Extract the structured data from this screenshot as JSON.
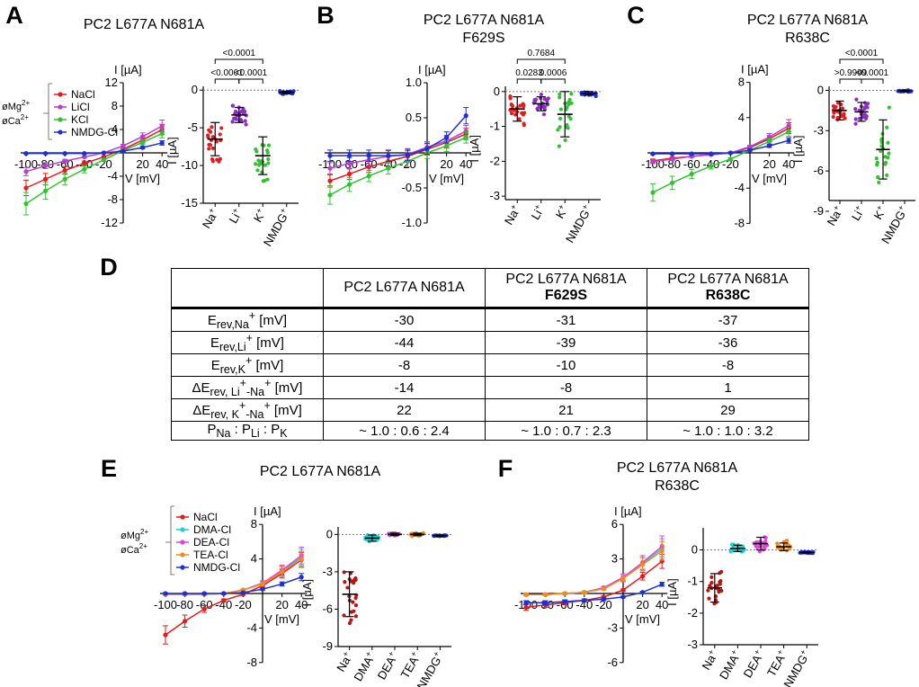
{
  "panels": {
    "A": {
      "letter": "A",
      "title": [
        "PC2 L677A N681A"
      ]
    },
    "B": {
      "letter": "B",
      "title": [
        "PC2 L677A N681A",
        "F629S"
      ]
    },
    "C": {
      "letter": "C",
      "title": [
        "PC2 L677A N681A",
        "R638C"
      ]
    },
    "D": {
      "letter": "D"
    },
    "E": {
      "letter": "E",
      "title": [
        "PC2 L677A N681A"
      ]
    },
    "F": {
      "letter": "F",
      "title": [
        "PC2 L677A N681A",
        "R638C"
      ]
    }
  },
  "legend_top": {
    "cond_mg": "øMg",
    "cond_mg_sup": "2+",
    "cond_ca": "øCa",
    "cond_ca_sup": "2+",
    "entries": [
      "NaCl",
      "LiCl",
      "KCl",
      "NMDG-Cl"
    ],
    "colors": [
      "#e41a1c",
      "#b43fd0",
      "#2fc42f",
      "#1f2fd6"
    ]
  },
  "legend_bottom": {
    "cond_mg": "øMg",
    "cond_mg_sup": "2+",
    "cond_ca": "øCa",
    "cond_ca_sup": "2+",
    "entries": [
      "NaCl",
      "DMA-Cl",
      "DEA-Cl",
      "TEA-Cl",
      "NMDG-Cl"
    ],
    "colors": [
      "#e41a1c",
      "#19d3d3",
      "#e045d8",
      "#f08c1a",
      "#1f2fd6"
    ]
  },
  "chart_data": [
    {
      "id": "A-iv",
      "type": "line",
      "ylabel": "I [µA]",
      "xlabel": "V [mV]",
      "x": [
        -100,
        -80,
        -60,
        -40,
        -20,
        0,
        20,
        40
      ],
      "xticks": [
        -100,
        -80,
        -60,
        -40,
        -20,
        20,
        40
      ],
      "ylim": [
        -12,
        12
      ],
      "yticks": [
        -12,
        -8,
        -4,
        4,
        8,
        12
      ],
      "series": [
        {
          "name": "NaCl",
          "color": "#e41a1c",
          "values": [
            -6.0,
            -4.5,
            -3.0,
            -1.8,
            -0.7,
            0.6,
            2.2,
            4.0
          ]
        },
        {
          "name": "LiCl",
          "color": "#b43fd0",
          "values": [
            -3.2,
            -2.2,
            -1.4,
            -0.7,
            0.0,
            1.2,
            2.8,
            4.6
          ]
        },
        {
          "name": "KCl",
          "color": "#2fc42f",
          "values": [
            -8.7,
            -6.5,
            -4.5,
            -2.8,
            -1.2,
            0.4,
            1.8,
            3.3
          ]
        },
        {
          "name": "NMDG-Cl",
          "color": "#1f2fd6",
          "values": [
            -0.1,
            -0.1,
            -0.1,
            -0.1,
            0.0,
            0.3,
            0.9,
            1.7
          ]
        }
      ]
    },
    {
      "id": "A-scatter",
      "type": "scatter",
      "ylabel": "I [µA]",
      "categories": [
        "Na",
        "Li",
        "K",
        "NMDG"
      ],
      "category_sups": [
        "+",
        "+",
        "+",
        "+"
      ],
      "ylim": [
        -15,
        0.5
      ],
      "yticks": [
        0,
        -5,
        -10,
        -15
      ],
      "colors": [
        "#e41a1c",
        "#8b2fbf",
        "#2fc42f",
        "#1f2fd6"
      ],
      "means": [
        -6.5,
        -3.3,
        -8.7,
        -0.3
      ],
      "sds": [
        2.2,
        1.0,
        2.5,
        0.15
      ],
      "brackets": [
        {
          "from": 0,
          "to": 2,
          "label": "<0.0001",
          "level": 2
        },
        {
          "from": 0,
          "to": 1,
          "label": "<0.0001",
          "level": 1
        },
        {
          "from": 1,
          "to": 2,
          "label": "<0.0001",
          "level": 1
        }
      ]
    },
    {
      "id": "B-iv",
      "type": "line",
      "ylabel": "I [µA]",
      "xlabel": "V [mV]",
      "x": [
        -100,
        -80,
        -60,
        -40,
        -20,
        0,
        20,
        40
      ],
      "xticks": [
        -100,
        -80,
        -60,
        -40,
        -20,
        20,
        40
      ],
      "ylim": [
        -1.0,
        1.0
      ],
      "yticks": [
        -1.0,
        -0.5,
        0.5,
        1.0
      ],
      "series": [
        {
          "name": "NaCl",
          "color": "#e41a1c",
          "values": [
            -0.4,
            -0.3,
            -0.2,
            -0.12,
            -0.05,
            0.05,
            0.15,
            0.27
          ]
        },
        {
          "name": "LiCl",
          "color": "#b43fd0",
          "values": [
            -0.22,
            -0.15,
            -0.1,
            -0.05,
            -0.02,
            0.08,
            0.17,
            0.31
          ]
        },
        {
          "name": "KCl",
          "color": "#2fc42f",
          "values": [
            -0.6,
            -0.45,
            -0.33,
            -0.22,
            -0.12,
            0.0,
            0.1,
            0.22
          ]
        },
        {
          "name": "NMDG-Cl",
          "color": "#1f2fd6",
          "values": [
            -0.04,
            -0.04,
            -0.04,
            -0.04,
            -0.03,
            0.06,
            0.22,
            0.53
          ]
        }
      ]
    },
    {
      "id": "B-scatter",
      "type": "scatter",
      "ylabel": "I [µA]",
      "categories": [
        "Na",
        "Li",
        "K",
        "NMDG"
      ],
      "category_sups": [
        "+",
        "+",
        "+",
        "+"
      ],
      "ylim": [
        -3.1,
        0.15
      ],
      "yticks": [
        0,
        -1,
        -2,
        -3
      ],
      "colors": [
        "#e41a1c",
        "#8b2fbf",
        "#2fc42f",
        "#1f2fd6"
      ],
      "means": [
        -0.5,
        -0.35,
        -0.65,
        -0.05
      ],
      "sds": [
        0.35,
        0.2,
        0.65,
        0.05
      ],
      "brackets": [
        {
          "from": 0,
          "to": 2,
          "label": "0.7684",
          "level": 2
        },
        {
          "from": 0,
          "to": 1,
          "label": "0.0283",
          "level": 1
        },
        {
          "from": 1,
          "to": 2,
          "label": "0.0006",
          "level": 1
        }
      ]
    },
    {
      "id": "C-iv",
      "type": "line",
      "ylabel": "I [µA]",
      "xlabel": "V [mV]",
      "x": [
        -100,
        -80,
        -60,
        -40,
        -20,
        0,
        20,
        40
      ],
      "xticks": [
        -100,
        -80,
        -60,
        -40,
        -20,
        20,
        40
      ],
      "ylim": [
        -8,
        8
      ],
      "yticks": [
        -8,
        -4,
        4,
        8
      ],
      "series": [
        {
          "name": "NaCl",
          "color": "#e41a1c",
          "values": [
            -0.9,
            -0.6,
            -0.4,
            -0.2,
            0.0,
            0.6,
            1.6,
            2.8
          ]
        },
        {
          "name": "LiCl",
          "color": "#b43fd0",
          "values": [
            -1.0,
            -0.7,
            -0.4,
            -0.2,
            0.0,
            0.7,
            1.8,
            3.1
          ]
        },
        {
          "name": "KCl",
          "color": "#2fc42f",
          "values": [
            -4.5,
            -3.4,
            -2.4,
            -1.5,
            -0.7,
            0.3,
            1.3,
            2.4
          ]
        },
        {
          "name": "NMDG-Cl",
          "color": "#1f2fd6",
          "values": [
            -0.1,
            -0.1,
            -0.1,
            -0.1,
            0.0,
            0.3,
            0.8,
            1.4
          ]
        }
      ]
    },
    {
      "id": "C-scatter",
      "type": "scatter",
      "ylabel": "I [µA]",
      "categories": [
        "Na",
        "Li",
        "K",
        "NMDG"
      ],
      "category_sups": [
        "+",
        "+",
        "+",
        "+"
      ],
      "ylim": [
        -8.2,
        0.3
      ],
      "yticks": [
        0,
        -3,
        -6,
        -9
      ],
      "colors": [
        "#e41a1c",
        "#8b2fbf",
        "#2fc42f",
        "#1f2fd6"
      ],
      "means": [
        -1.5,
        -1.6,
        -4.4,
        -0.05
      ],
      "sds": [
        0.7,
        0.7,
        2.2,
        0.05
      ],
      "brackets": [
        {
          "from": 0,
          "to": 2,
          "label": "<0.0001",
          "level": 2
        },
        {
          "from": 0,
          "to": 1,
          "label": ">0.9999",
          "level": 1
        },
        {
          "from": 1,
          "to": 2,
          "label": "<0.0001",
          "level": 1
        }
      ]
    },
    {
      "id": "E-iv",
      "type": "line",
      "ylabel": "I [µA]",
      "xlabel": "V [mV]",
      "x": [
        -100,
        -80,
        -60,
        -40,
        -20,
        0,
        20,
        40
      ],
      "xticks": [
        -100,
        -80,
        -60,
        -40,
        -20,
        20,
        40
      ],
      "ylim": [
        -8,
        8
      ],
      "yticks": [
        -8,
        -4,
        4,
        8
      ],
      "series": [
        {
          "name": "NaCl",
          "color": "#e41a1c",
          "values": [
            -4.8,
            -3.2,
            -1.8,
            -0.8,
            -0.1,
            0.9,
            2.3,
            3.9
          ]
        },
        {
          "name": "DMA-Cl",
          "color": "#19d3d3",
          "values": [
            -0.1,
            -0.1,
            -0.1,
            0.0,
            0.4,
            1.2,
            2.6,
            4.2
          ]
        },
        {
          "name": "DEA-Cl",
          "color": "#e045d8",
          "values": [
            -0.1,
            -0.1,
            -0.1,
            0.0,
            0.4,
            1.2,
            2.7,
            4.4
          ]
        },
        {
          "name": "TEA-Cl",
          "color": "#f08c1a",
          "values": [
            -0.1,
            -0.1,
            -0.1,
            0.0,
            0.4,
            1.1,
            2.5,
            4.0
          ]
        },
        {
          "name": "NMDG-Cl",
          "color": "#1f2fd6",
          "values": [
            0.0,
            0.0,
            0.0,
            0.0,
            0.1,
            0.5,
            1.1,
            1.9
          ]
        }
      ]
    },
    {
      "id": "E-scatter",
      "type": "scatter",
      "ylabel": "I [µA]",
      "categories": [
        "Na",
        "DMA",
        "DEA",
        "TEA",
        "NMDG"
      ],
      "category_sups": [
        "+",
        "+",
        "+",
        "+",
        "+"
      ],
      "ylim": [
        -9,
        0.6
      ],
      "yticks": [
        0,
        -3,
        -6,
        -9
      ],
      "colors": [
        "#b81414",
        "#19d3d3",
        "#e045d8",
        "#f08c1a",
        "#1f2fd6"
      ],
      "means": [
        -4.8,
        -0.3,
        0.0,
        0.0,
        -0.1
      ],
      "sds": [
        1.8,
        0.25,
        0.1,
        0.1,
        0.05
      ],
      "brackets": []
    },
    {
      "id": "F-iv",
      "type": "line",
      "ylabel": "I [µA]",
      "xlabel": "V [mV]",
      "x": [
        -100,
        -80,
        -60,
        -40,
        -20,
        0,
        20,
        40
      ],
      "xticks": [
        -100,
        -80,
        -60,
        -40,
        -20,
        20,
        40
      ],
      "ylim": [
        -6,
        6
      ],
      "yticks": [
        -6,
        -3,
        3,
        6
      ],
      "series": [
        {
          "name": "NaCl",
          "color": "#e41a1c",
          "values": [
            -1.2,
            -1.0,
            -0.8,
            -0.6,
            -0.3,
            0.3,
            1.5,
            2.8
          ]
        },
        {
          "name": "DMA-Cl",
          "color": "#19d3d3",
          "values": [
            -0.1,
            -0.1,
            0.0,
            0.1,
            0.5,
            1.4,
            2.6,
            3.9
          ]
        },
        {
          "name": "DEA-Cl",
          "color": "#e045d8",
          "values": [
            -0.1,
            -0.1,
            0.0,
            0.1,
            0.5,
            1.4,
            2.7,
            4.1
          ]
        },
        {
          "name": "TEA-Cl",
          "color": "#f08c1a",
          "values": [
            -0.1,
            -0.1,
            0.0,
            0.1,
            0.4,
            1.3,
            2.5,
            3.7
          ]
        },
        {
          "name": "NMDG-Cl",
          "color": "#1f2fd6",
          "values": [
            -0.8,
            -0.8,
            -0.7,
            -0.6,
            -0.5,
            -0.3,
            0.1,
            0.8
          ]
        }
      ]
    },
    {
      "id": "F-scatter",
      "type": "scatter",
      "ylabel": "I [µA]",
      "categories": [
        "Na",
        "DMA",
        "DEA",
        "TEA",
        "NMDG"
      ],
      "category_sups": [
        "+",
        "+",
        "+",
        "+",
        "+"
      ],
      "ylim": [
        -3,
        0.7
      ],
      "yticks": [
        0,
        -1,
        -2,
        -3
      ],
      "colors": [
        "#b81414",
        "#19d3d3",
        "#e045d8",
        "#f08c1a",
        "#1f2fd6"
      ],
      "means": [
        -1.2,
        0.05,
        0.2,
        0.1,
        -0.08
      ],
      "sds": [
        0.45,
        0.1,
        0.2,
        0.12,
        0.02
      ],
      "brackets": []
    },
    {
      "id": "D-table",
      "type": "table",
      "header": [
        "",
        "PC2 L677A N681A",
        "PC2 L677A N681A",
        "PC2 L677A N681A"
      ],
      "header_sub": [
        "",
        "",
        "F629S",
        "R638C"
      ],
      "rows": [
        {
          "label": "E_rev,Na+ [mV]",
          "values": [
            "-30",
            "-31",
            "-37"
          ]
        },
        {
          "label": "E_rev,Li+ [mV]",
          "values": [
            "-44",
            "-39",
            "-36"
          ]
        },
        {
          "label": "E_rev,K+ [mV]",
          "values": [
            "-8",
            "-10",
            "-8"
          ]
        },
        {
          "label": "ΔE_rev, Li+-Na+ [mV]",
          "values": [
            "-14",
            "-8",
            "1"
          ]
        },
        {
          "label": "ΔE_rev, K+-Na+ [mV]",
          "values": [
            "22",
            "21",
            "29"
          ]
        },
        {
          "label": "P_Na : P_Li : P_K",
          "values": [
            "~ 1.0 : 0.6 : 2.4",
            "~ 1.0 : 0.7 : 2.3",
            "~ 1.0 : 1.0 : 3.2"
          ]
        }
      ]
    }
  ],
  "table_labels": {
    "r0": {
      "main": "E",
      "sub": "rev,Na",
      "sup": "+",
      "unit": " [mV]"
    },
    "r1": {
      "main": "E",
      "sub": "rev,Li",
      "sup": "+",
      "unit": " [mV]"
    },
    "r2": {
      "main": "E",
      "sub": "rev,K",
      "sup": "+",
      "unit": " [mV]"
    },
    "r3": {
      "main": "ΔE",
      "sub": "rev, Li",
      "sup": "+",
      "sub2": "-Na",
      "sup2": "+",
      "unit": " [mV]"
    },
    "r4": {
      "main": "ΔE",
      "sub": "rev, K",
      "sup": "+",
      "sub2": "-Na",
      "sup2": "+",
      "unit": " [mV]"
    },
    "r5": {
      "p1": "P",
      "s1": "Na",
      "p2": " : P",
      "s2": "Li",
      "p3": " : P",
      "s3": "K"
    }
  }
}
